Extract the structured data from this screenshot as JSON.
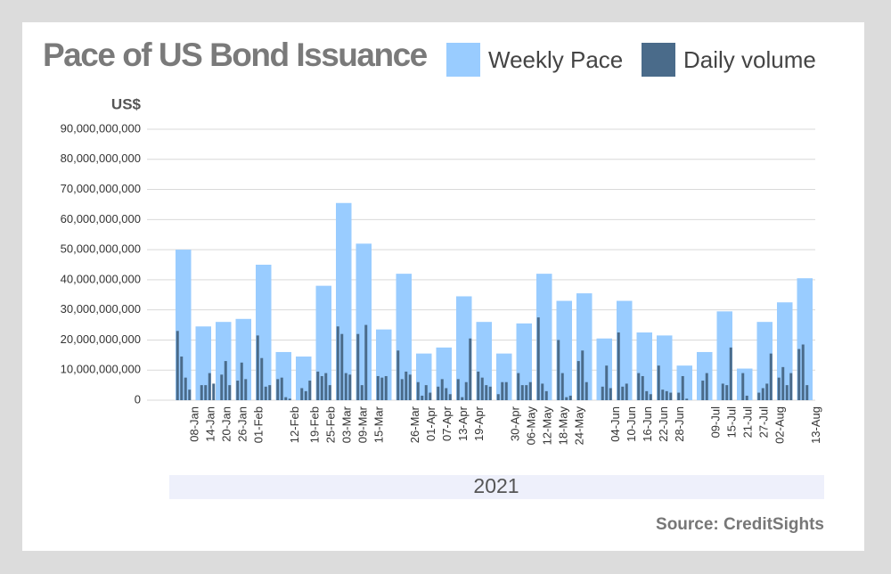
{
  "chart_data": {
    "type": "bar",
    "title": "Pace of US Bond Issuance",
    "y_label": "US$",
    "x_label": "2021",
    "source": "Source: CreditSights",
    "grid": true,
    "ylim": [
      0,
      90000000000
    ],
    "yticks": [
      0,
      {
        "value": 10000000000,
        "label": "10,000,000,000"
      },
      {
        "value": 20000000000,
        "label": "20,000,000,000"
      },
      {
        "value": 30000000000,
        "label": "30,000,000,000"
      },
      {
        "value": 40000000000,
        "label": "40,000,000,000"
      },
      {
        "value": 50000000000,
        "label": "50,000,000,000"
      },
      {
        "value": 60000000000,
        "label": "60,000,000,000"
      },
      {
        "value": 70000000000,
        "label": "70,000,000,000"
      },
      {
        "value": 80000000000,
        "label": "80,000,000,000"
      },
      {
        "value": 90000000000,
        "label": "90,000,000,000"
      }
    ],
    "categories": [
      null,
      null,
      null,
      null,
      "08-Jan",
      null,
      null,
      null,
      "14-Jan",
      null,
      null,
      null,
      "20-Jan",
      null,
      null,
      null,
      "26-Jan",
      null,
      null,
      null,
      "01-Feb",
      null,
      null,
      null,
      null,
      null,
      null,
      null,
      null,
      "12-Feb",
      null,
      null,
      null,
      null,
      "19-Feb",
      null,
      null,
      null,
      "25-Feb",
      null,
      null,
      null,
      "03-Mar",
      null,
      null,
      null,
      "09-Mar",
      null,
      null,
      null,
      "15-Mar",
      null,
      null,
      null,
      null,
      null,
      null,
      null,
      null,
      "26-Mar",
      null,
      null,
      null,
      "01-Apr",
      null,
      null,
      null,
      "07-Apr",
      null,
      null,
      null,
      "13-Apr",
      null,
      null,
      null,
      "19-Apr",
      null,
      null,
      null,
      null,
      null,
      null,
      null,
      null,
      "30-Apr",
      null,
      null,
      null,
      "06-May",
      null,
      null,
      null,
      "12-May",
      null,
      null,
      null,
      "18-May",
      null,
      null,
      null,
      "24-May",
      null,
      null,
      null,
      null,
      null,
      null,
      null,
      null,
      "04-Jun",
      null,
      null,
      null,
      "10-Jun",
      null,
      null,
      null,
      "16-Jun",
      null,
      null,
      null,
      "22-Jun",
      null,
      null,
      null,
      "28-Jun",
      null,
      null,
      null,
      null,
      null,
      null,
      null,
      null,
      "09-Jul",
      null,
      null,
      null,
      "15-Jul",
      null,
      null,
      null,
      "21-Jul",
      null,
      null,
      null,
      "27-Jul",
      null,
      null,
      null,
      "02-Aug",
      null,
      null,
      null,
      null,
      null,
      null,
      null,
      null,
      "13-Aug"
    ],
    "series": [
      {
        "name": "Weekly Pace",
        "color": "#99ccff",
        "span": 5,
        "values": [
          50000000000.0,
          null,
          null,
          null,
          null,
          24500000000.0,
          null,
          null,
          null,
          null,
          26000000000.0,
          null,
          null,
          null,
          null,
          27000000000.0,
          null,
          null,
          null,
          null,
          45000000000.0,
          null,
          null,
          null,
          null,
          16000000000.0,
          null,
          null,
          null,
          null,
          14500000000.0,
          null,
          null,
          null,
          null,
          38000000000.0,
          null,
          null,
          null,
          null,
          65500000000.0,
          null,
          null,
          null,
          null,
          52000000000.0,
          null,
          null,
          null,
          null,
          23500000000.0,
          null,
          null,
          null,
          null,
          42000000000.0,
          null,
          null,
          null,
          null,
          15500000000.0,
          null,
          null,
          null,
          null,
          17500000000.0,
          null,
          null,
          null,
          null,
          34500000000.0,
          null,
          null,
          null,
          null,
          26000000000.0,
          null,
          null,
          null,
          null,
          15500000000.0,
          null,
          null,
          null,
          null,
          25500000000.0,
          null,
          null,
          null,
          null,
          42000000000.0,
          null,
          null,
          null,
          null,
          33000000000.0,
          null,
          null,
          null,
          null,
          35500000000.0,
          null,
          null,
          null,
          null,
          20500000000.0,
          null,
          null,
          null,
          null,
          33000000000.0,
          null,
          null,
          null,
          null,
          22500000000.0,
          null,
          null,
          null,
          null,
          21500000000.0,
          null,
          null,
          null,
          null,
          11500000000.0,
          null,
          null,
          null,
          null,
          16000000000.0,
          null,
          null,
          null,
          null,
          29500000000.0,
          null,
          null,
          null,
          null,
          10500000000.0,
          null,
          null,
          null,
          null,
          26000000000.0,
          null,
          null,
          null,
          null,
          32500000000.0,
          null,
          null,
          null,
          null,
          40500000000.0,
          null,
          null,
          null,
          null
        ]
      },
      {
        "name": "Daily volume",
        "color": "#4a6b8a",
        "span": 1,
        "values": [
          23000000000.0,
          14500000000.0,
          7500000000.0,
          3500000000.0,
          0,
          0,
          5000000000.0,
          5000000000.0,
          9000000000.0,
          5500000000.0,
          0,
          8500000000.0,
          13000000000.0,
          5000000000.0,
          0,
          6500000000.0,
          12500000000.0,
          7000000000.0,
          0,
          0,
          21500000000.0,
          14000000000.0,
          4500000000.0,
          5000000000.0,
          0,
          7000000000.0,
          7500000000.0,
          1000000000.0,
          500000000.0,
          0,
          0,
          4000000000.0,
          3000000000.0,
          6500000000.0,
          0,
          9500000000.0,
          8000000000.0,
          9000000000.0,
          5000000000.0,
          0,
          24500000000.0,
          22000000000.0,
          9000000000.0,
          8500000000.0,
          0,
          22000000000.0,
          5000000000.0,
          25000000000.0,
          0,
          0,
          8000000000.0,
          7500000000.0,
          8000000000.0,
          0,
          0,
          16500000000.0,
          7000000000.0,
          9500000000.0,
          8500000000.0,
          0,
          6000000000.0,
          1500000000.0,
          5000000000.0,
          2500000000.0,
          0,
          4500000000.0,
          7000000000.0,
          4000000000.0,
          2000000000.0,
          0,
          7000000000.0,
          1000000000.0,
          6000000000.0,
          20500000000.0,
          0,
          9500000000.0,
          7500000000.0,
          5000000000.0,
          4500000000.0,
          0,
          2000000000.0,
          6000000000.0,
          6000000000.0,
          0,
          0,
          9000000000.0,
          5000000000.0,
          5000000000.0,
          6000000000.0,
          0,
          27500000000.0,
          5500000000.0,
          3000000000.0,
          0,
          0,
          20000000000.0,
          9000000000.0,
          1000000000.0,
          1500000000.0,
          0,
          13000000000.0,
          16500000000.0,
          6000000000.0,
          0,
          0,
          0,
          4500000000.0,
          11500000000.0,
          4000000000.0,
          0,
          22500000000.0,
          4500000000.0,
          5500000000.0,
          0,
          0,
          9000000000.0,
          8000000000.0,
          3000000000.0,
          2000000000.0,
          0,
          11500000000.0,
          3500000000.0,
          3000000000.0,
          2500000000.0,
          0,
          2500000000.0,
          8000000000.0,
          500000000.0,
          0,
          0,
          0,
          6500000000.0,
          9000000000.0,
          0,
          0,
          0,
          5500000000.0,
          5000000000.0,
          17500000000.0,
          0,
          0,
          9000000000.0,
          1500000000.0,
          0,
          0,
          2500000000.0,
          4000000000.0,
          5500000000.0,
          15500000000.0,
          0,
          7500000000.0,
          11000000000.0,
          5000000000.0,
          9000000000.0,
          0,
          17000000000.0,
          18500000000.0,
          5000000000.0,
          0,
          0
        ]
      }
    ]
  }
}
